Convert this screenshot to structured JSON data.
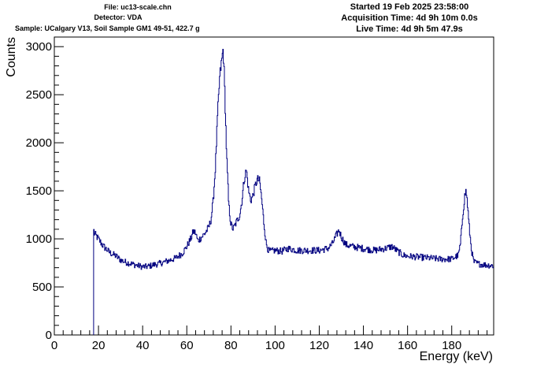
{
  "header": {
    "file": "File: uc13-scale.chn",
    "detector": "Detector: VDA",
    "sample": "Sample: UCalgary V13, Soil Sample GM1 49-51, 422.7 g",
    "started": "Started 19 Feb 2025 23:58:00",
    "acquisition": "Acquisition Time: 4d 9h 10m 0.0s",
    "live": "Live Time: 4d 9h 5m 47.9s"
  },
  "chart_data": {
    "type": "line",
    "style": "step-histogram",
    "line_color": "#000080",
    "xlabel": "Energy (keV)",
    "ylabel": "Counts",
    "xlim": [
      0,
      199
    ],
    "ylim": [
      0,
      3100
    ],
    "x_ticks": [
      0,
      20,
      40,
      60,
      80,
      100,
      120,
      140,
      160,
      180
    ],
    "y_ticks": [
      0,
      500,
      1000,
      1500,
      2000,
      2500,
      3000
    ],
    "data_start_x": 17.8,
    "grid": false,
    "series": [
      {
        "points": [
          [
            17.8,
            1130
          ],
          [
            18,
            1060
          ],
          [
            20,
            1000
          ],
          [
            22,
            930
          ],
          [
            25,
            860
          ],
          [
            28,
            820
          ],
          [
            30,
            780
          ],
          [
            32,
            760
          ],
          [
            35,
            740
          ],
          [
            38,
            720
          ],
          [
            40,
            710
          ],
          [
            42,
            710
          ],
          [
            45,
            730
          ],
          [
            48,
            745
          ],
          [
            50,
            760
          ],
          [
            52,
            775
          ],
          [
            55,
            800
          ],
          [
            58,
            850
          ],
          [
            60,
            920
          ],
          [
            62,
            1010
          ],
          [
            63,
            1080
          ],
          [
            64,
            1060
          ],
          [
            65,
            980
          ],
          [
            66,
            1000
          ],
          [
            68,
            1050
          ],
          [
            70,
            1120
          ],
          [
            71,
            1200
          ],
          [
            72,
            1400
          ],
          [
            73,
            1750
          ],
          [
            74,
            2300
          ],
          [
            75,
            2700
          ],
          [
            76,
            2880
          ],
          [
            76.5,
            2980
          ],
          [
            77,
            2700
          ],
          [
            78,
            1900
          ],
          [
            79,
            1350
          ],
          [
            80,
            1150
          ],
          [
            81,
            1100
          ],
          [
            82,
            1150
          ],
          [
            83,
            1200
          ],
          [
            84,
            1250
          ],
          [
            85,
            1400
          ],
          [
            86,
            1620
          ],
          [
            87,
            1720
          ],
          [
            88,
            1500
          ],
          [
            89,
            1400
          ],
          [
            90,
            1450
          ],
          [
            91,
            1550
          ],
          [
            92,
            1620
          ],
          [
            93,
            1600
          ],
          [
            94,
            1400
          ],
          [
            95,
            1150
          ],
          [
            96,
            950
          ],
          [
            97,
            880
          ],
          [
            98,
            870
          ],
          [
            100,
            880
          ],
          [
            103,
            870
          ],
          [
            106,
            900
          ],
          [
            110,
            880
          ],
          [
            115,
            880
          ],
          [
            120,
            880
          ],
          [
            124,
            900
          ],
          [
            126,
            950
          ],
          [
            128,
            1050
          ],
          [
            129,
            1090
          ],
          [
            130,
            1020
          ],
          [
            132,
            940
          ],
          [
            135,
            920
          ],
          [
            140,
            900
          ],
          [
            145,
            880
          ],
          [
            150,
            900
          ],
          [
            153,
            920
          ],
          [
            155,
            880
          ],
          [
            158,
            830
          ],
          [
            160,
            820
          ],
          [
            165,
            810
          ],
          [
            170,
            800
          ],
          [
            175,
            790
          ],
          [
            180,
            790
          ],
          [
            183,
            830
          ],
          [
            184,
            950
          ],
          [
            185,
            1250
          ],
          [
            186,
            1460
          ],
          [
            186.5,
            1500
          ],
          [
            187,
            1400
          ],
          [
            188,
            1100
          ],
          [
            189,
            880
          ],
          [
            190,
            760
          ],
          [
            192,
            740
          ],
          [
            195,
            730
          ],
          [
            199,
            720
          ]
        ]
      }
    ]
  }
}
